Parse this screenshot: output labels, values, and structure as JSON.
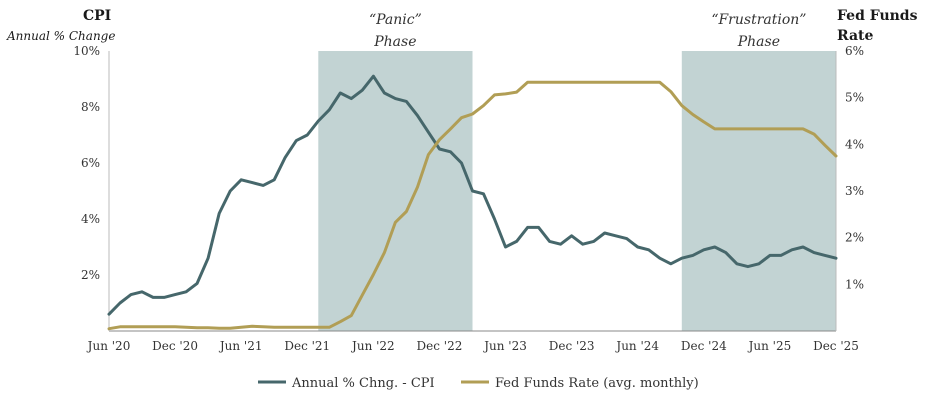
{
  "chart_data": {
    "type": "line",
    "left_axis": {
      "title": "CPI",
      "subtitle": "Annual % Change",
      "range": [
        0,
        10
      ],
      "ticks": [
        2,
        4,
        6,
        8,
        10
      ],
      "tick_labels": [
        "2%",
        "4%",
        "6%",
        "8%",
        "10%"
      ]
    },
    "right_axis": {
      "title_line1": "Fed Funds",
      "title_line2": "Rate",
      "range": [
        0,
        6
      ],
      "ticks": [
        1,
        2,
        3,
        4,
        5,
        6
      ],
      "tick_labels": [
        "1%",
        "2%",
        "3%",
        "4%",
        "5%",
        "6%"
      ]
    },
    "x_range": [
      0,
      66
    ],
    "x_ticks": [
      0,
      6,
      12,
      18,
      24,
      30,
      36,
      42,
      48,
      54,
      60,
      66
    ],
    "x_tick_labels": [
      "Jun '20",
      "Dec '20",
      "Jun '21",
      "Dec '21",
      "Jun '22",
      "Dec '22",
      "Jun '23",
      "Dec '23",
      "Jun '24",
      "Dec '24",
      "Jun '25",
      "Dec '25"
    ],
    "phases": [
      {
        "label_line1": "“Panic”",
        "label_line2": "Phase",
        "start": 19,
        "end": 33
      },
      {
        "label_line1": "“Frustration”",
        "label_line2": "Phase",
        "start": 52,
        "end": 66
      }
    ],
    "series": [
      {
        "name": "Annual % Chng. - CPI",
        "axis": "left",
        "color": "#46676b",
        "values": [
          0.6,
          1.0,
          1.3,
          1.4,
          1.2,
          1.2,
          1.3,
          1.4,
          1.7,
          2.6,
          4.2,
          5.0,
          5.4,
          5.3,
          5.2,
          5.4,
          6.2,
          6.8,
          7.0,
          7.5,
          7.9,
          8.5,
          8.3,
          8.6,
          9.1,
          8.5,
          8.3,
          8.2,
          7.7,
          7.1,
          6.5,
          6.4,
          6.0,
          5.0,
          4.9,
          4.0,
          3.0,
          3.2,
          3.7,
          3.7,
          3.2,
          3.1,
          3.4,
          3.1,
          3.2,
          3.5,
          3.4,
          3.3,
          3.0,
          2.9,
          2.6,
          2.4,
          2.6,
          2.7,
          2.9,
          3.0,
          2.8,
          2.4,
          2.3,
          2.4,
          2.7,
          2.7,
          2.9,
          3.0,
          2.8,
          2.7,
          2.6
        ]
      },
      {
        "name": "Fed Funds Rate (avg. monthly)",
        "axis": "right",
        "color": "#b19e55",
        "values": [
          0.05,
          0.09,
          0.09,
          0.09,
          0.09,
          0.09,
          0.09,
          0.08,
          0.07,
          0.07,
          0.06,
          0.06,
          0.08,
          0.1,
          0.09,
          0.08,
          0.08,
          0.08,
          0.08,
          0.08,
          0.08,
          0.2,
          0.33,
          0.77,
          1.21,
          1.68,
          2.33,
          2.56,
          3.08,
          3.78,
          4.1,
          4.33,
          4.57,
          4.65,
          4.83,
          5.06,
          5.08,
          5.12,
          5.33,
          5.33,
          5.33,
          5.33,
          5.33,
          5.33,
          5.33,
          5.33,
          5.33,
          5.33,
          5.33,
          5.33,
          5.33,
          5.13,
          4.83,
          4.64,
          4.48,
          4.33,
          4.33,
          4.33,
          4.33,
          4.33,
          4.33,
          4.33,
          4.33,
          4.33,
          4.22,
          3.98,
          3.75
        ]
      }
    ],
    "legend": [
      {
        "label": "Annual % Chng. - CPI",
        "color": "#46676b"
      },
      {
        "label": "Fed Funds Rate (avg. monthly)",
        "color": "#b19e55"
      }
    ]
  }
}
